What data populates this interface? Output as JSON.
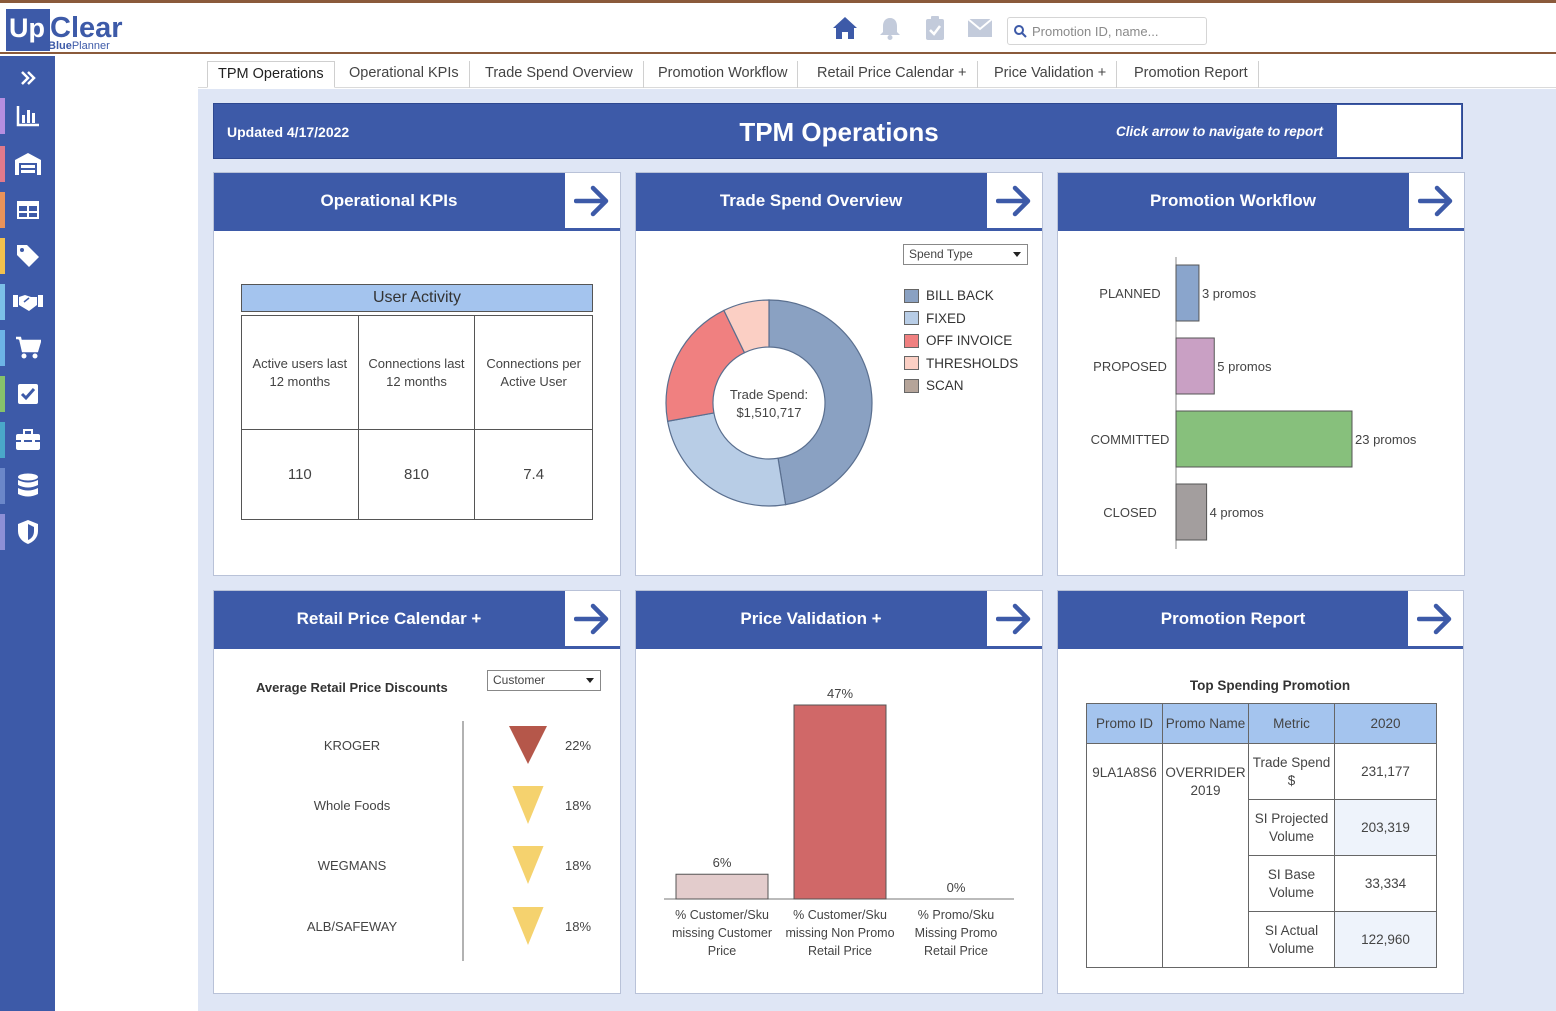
{
  "brand": {
    "logo_up": "Up",
    "logo_clear": "Clear",
    "logo_sub_bold": "Blue",
    "logo_sub": "Planner"
  },
  "header": {
    "icons": [
      "home-icon",
      "bell-icon",
      "clipboard-check-icon",
      "mail-icon"
    ],
    "search_placeholder": "Promotion ID, name..."
  },
  "sidebar": {
    "items": [
      {
        "name": "expand-icon",
        "stripe": ""
      },
      {
        "name": "bar-chart-icon",
        "stripe": "#b58ee0"
      },
      {
        "name": "warehouse-icon",
        "stripe": "#e07a8c"
      },
      {
        "name": "table-icon",
        "stripe": "#e9935a"
      },
      {
        "name": "tag-icon",
        "stripe": "#f2c14e"
      },
      {
        "name": "handshake-icon",
        "stripe": "#7cc0e8"
      },
      {
        "name": "cart-icon",
        "stripe": "#6db4e6"
      },
      {
        "name": "checkbox-icon",
        "stripe": "#86c26b"
      },
      {
        "name": "toolbox-icon",
        "stripe": "#4aa7c9"
      },
      {
        "name": "database-icon",
        "stripe": "#6b87c9"
      },
      {
        "name": "shield-icon",
        "stripe": "#8d8fd6"
      }
    ]
  },
  "tabs": [
    "TPM Operations",
    "Operational KPIs",
    "Trade Spend Overview",
    "Promotion Workflow",
    "Retail Price Calendar +",
    "Price Validation +",
    "Promotion Report"
  ],
  "banner": {
    "updated": "Updated 4/17/2022",
    "title": "TPM Operations",
    "hint": "Click arrow to navigate to report"
  },
  "cards": {
    "kpis": {
      "title": "Operational KPIs",
      "table_title": "User Activity",
      "headers": [
        "Active users last 12 months",
        "Connections last 12 months",
        "Connections per Active User"
      ],
      "values": [
        "110",
        "810",
        "7.4"
      ]
    },
    "trade_spend": {
      "title": "Trade Spend Overview",
      "filter": "Spend Type",
      "center_label": "Trade Spend:",
      "center_value": "$1,510,717"
    },
    "workflow": {
      "title": "Promotion Workflow"
    },
    "retail_price": {
      "title": "Retail Price Calendar +",
      "subtitle": "Average Retail Price Discounts",
      "filter": "Customer"
    },
    "price_validation": {
      "title": "Price Validation +"
    },
    "promo_report": {
      "title": "Promotion Report",
      "subtitle": "Top Spending Promotion",
      "headers": [
        "Promo ID",
        "Promo Name",
        "Metric",
        "2020"
      ],
      "promo_id": "9LA1A8S6",
      "promo_name": "OVERRIDER 2019",
      "rows": [
        {
          "metric": "Trade Spend $",
          "value": "231,177"
        },
        {
          "metric": "SI Projected Volume",
          "value": "203,319"
        },
        {
          "metric": "SI Base Volume",
          "value": "33,334"
        },
        {
          "metric": "SI Actual Volume",
          "value": "122,960"
        }
      ]
    }
  },
  "chart_data": [
    {
      "type": "pie",
      "title": "Trade Spend Overview",
      "total_label": "Trade Spend: $1,510,717",
      "series": [
        {
          "name": "BILL BACK",
          "value": 46,
          "color": "#8aa1c2"
        },
        {
          "name": "FIXED",
          "value": 24,
          "color": "#b8cde6"
        },
        {
          "name": "OFF INVOICE",
          "value": 20,
          "color": "#f08080"
        },
        {
          "name": "THRESHOLDS",
          "value": 7,
          "color": "#fbcfc4"
        },
        {
          "name": "SCAN",
          "value": 0,
          "color": "#b5a499"
        }
      ]
    },
    {
      "type": "bar",
      "title": "Promotion Workflow",
      "orientation": "horizontal",
      "categories": [
        "PLANNED",
        "PROPOSED",
        "COMMITTED",
        "CLOSED"
      ],
      "values": [
        3,
        5,
        23,
        4
      ],
      "labels": [
        "3 promos",
        "5 promos",
        "23 promos",
        "4 promos"
      ],
      "colors": [
        "#8aa5cc",
        "#c9a0c4",
        "#87c07c",
        "#a39e9e"
      ]
    },
    {
      "type": "bar",
      "title": "Average Retail Price Discounts",
      "categories": [
        "KROGER",
        "Whole Foods",
        "WEGMANS",
        "ALB/SAFEWAY"
      ],
      "values": [
        22,
        18,
        18,
        18
      ],
      "labels": [
        "22%",
        "18%",
        "18%",
        "18%"
      ],
      "colors": [
        "#b5574a",
        "#f5d26e",
        "#f5d26e",
        "#f5d26e"
      ]
    },
    {
      "type": "bar",
      "title": "Price Validation +",
      "categories": [
        "% Customer/Sku missing Customer Price",
        "% Customer/Sku missing Non Promo Retail Price",
        "% Promo/Sku Missing Promo Retail Price"
      ],
      "values": [
        6,
        47,
        0
      ],
      "labels": [
        "6%",
        "47%",
        "0%"
      ],
      "colors": [
        "#e3cccc",
        "#d06868",
        "#cccccc"
      ]
    }
  ]
}
